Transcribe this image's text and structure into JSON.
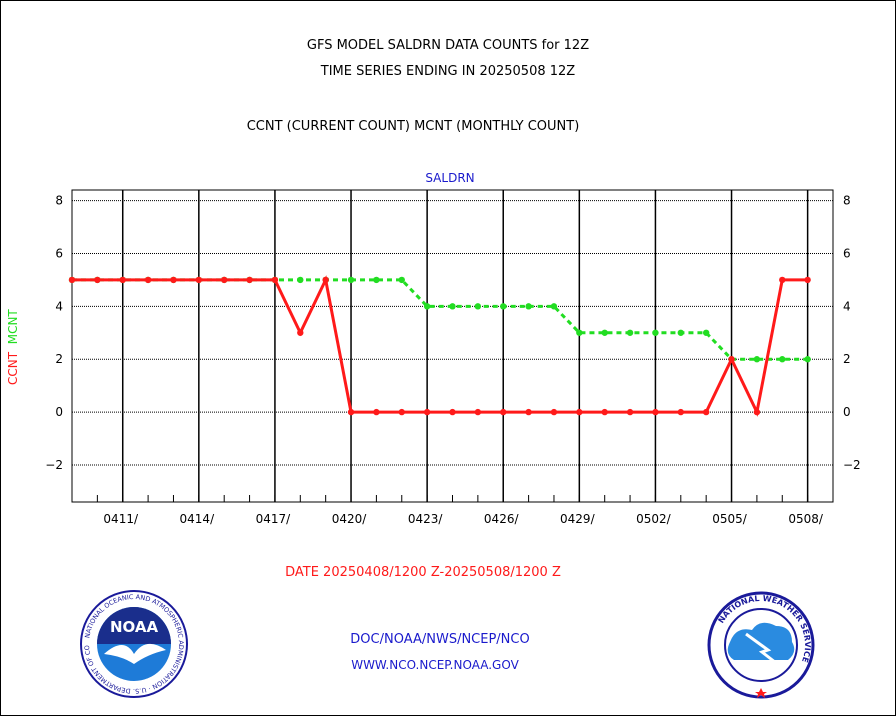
{
  "header": {
    "title_line1": "GFS MODEL SALDRN DATA COUNTS for 12Z",
    "title_line2": "TIME SERIES ENDING IN 20250508 12Z",
    "subtitle": "CCNT (CURRENT COUNT) MCNT (MONTHLY COUNT)"
  },
  "footer": {
    "date_range": "DATE 20250408/1200 Z-20250508/1200 Z",
    "credit_line1": "DOC/NOAA/NWS/NCEP/NCO",
    "credit_line2": "WWW.NCO.NCEP.NOAA.GOV"
  },
  "logos": {
    "left": {
      "icon": "noaa-logo-icon",
      "text": "NOAA",
      "ring_text": "NATIONAL OCEANIC AND ATMOSPHERIC ADMINISTRATION · U.S. DEPARTMENT OF COMMERCE"
    },
    "right": {
      "icon": "nws-logo-icon",
      "ring_text": "NATIONAL WEATHER SERVICE"
    }
  },
  "colors": {
    "ccnt": "#ff1a1a",
    "mcnt": "#22dd22",
    "panel_title": "#1a1acc",
    "credits": "#1a1acc"
  },
  "chart_data": {
    "type": "line",
    "panel_title": "SALDRN",
    "ylabel_parts": [
      "CCNT",
      "MCNT"
    ],
    "ylim": [
      -3.4,
      8.4
    ],
    "yticks": [
      8,
      6,
      4,
      2,
      0,
      -2
    ],
    "ytick_labels": [
      "8",
      "6",
      "4",
      "2",
      "0",
      "−2"
    ],
    "xlim": [
      0,
      30
    ],
    "xticks": [
      {
        "day": 2,
        "label": "0411/"
      },
      {
        "day": 5,
        "label": "0414/"
      },
      {
        "day": 8,
        "label": "0417/"
      },
      {
        "day": 11,
        "label": "0420/"
      },
      {
        "day": 14,
        "label": "0423/"
      },
      {
        "day": 17,
        "label": "0426/"
      },
      {
        "day": 20,
        "label": "0429/"
      },
      {
        "day": 23,
        "label": "0502/"
      },
      {
        "day": 26,
        "label": "0505/"
      },
      {
        "day": 29,
        "label": "0508/"
      }
    ],
    "grid": true,
    "x": [
      0,
      1,
      2,
      3,
      4,
      5,
      6,
      7,
      8,
      9,
      10,
      11,
      12,
      13,
      14,
      15,
      16,
      17,
      18,
      19,
      20,
      21,
      22,
      23,
      24,
      25,
      26,
      27,
      28,
      29,
      30
    ],
    "series": [
      {
        "name": "CCNT",
        "values": [
          5,
          5,
          5,
          5,
          5,
          5,
          5,
          5,
          5,
          3,
          5,
          0,
          0,
          0,
          0,
          0,
          0,
          0,
          0,
          0,
          0,
          0,
          0,
          0,
          0,
          0,
          2,
          0,
          5,
          5,
          null
        ]
      },
      {
        "name": "MCNT",
        "values": [
          5,
          5,
          5,
          5,
          5,
          5,
          5,
          5,
          5,
          5,
          5,
          5,
          5,
          5,
          4,
          4,
          4,
          4,
          4,
          4,
          3,
          3,
          3,
          3,
          3,
          3,
          2,
          2,
          2,
          2,
          null
        ]
      }
    ]
  }
}
